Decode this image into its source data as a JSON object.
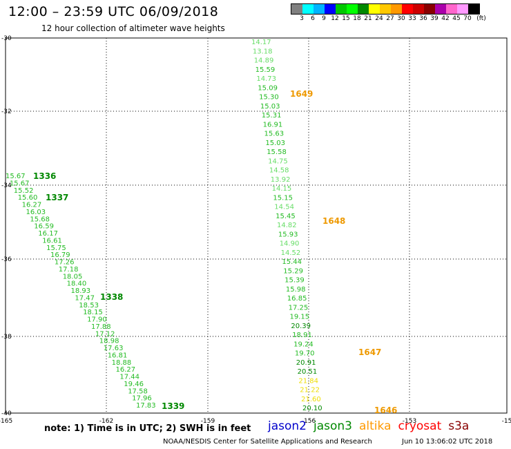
{
  "header": {
    "title": "12:00 – 23:59 UTC 06/09/2018",
    "subtitle": "12 hour collection of altimeter wave heights"
  },
  "colorbar": {
    "unit": "(ft)",
    "colors": [
      "#808080",
      "#00ffff",
      "#00b4ff",
      "#0000ff",
      "#00c800",
      "#00ff00",
      "#008800",
      "#ffff00",
      "#ffc800",
      "#ff9900",
      "#ff0000",
      "#cc0000",
      "#880000",
      "#aa00aa",
      "#ff66cc",
      "#ff99ff",
      "#000000"
    ],
    "labels": [
      "3",
      "6",
      "9",
      "12",
      "15",
      "18",
      "21",
      "24",
      "27",
      "30",
      "33",
      "36",
      "39",
      "42",
      "45",
      "70"
    ]
  },
  "axes": {
    "lon_ticks": [
      "-165",
      "-162",
      "-159",
      "-156",
      "-153",
      "-15"
    ],
    "lat_ticks": [
      "-30",
      "-32",
      "-34",
      "-36",
      "-38",
      "-40"
    ]
  },
  "tracks": [
    {
      "name": "jason3-east",
      "points": [
        [
          "14.17",
          "#66dd66"
        ],
        [
          "13.18",
          "#66dd66"
        ],
        [
          "14.89",
          "#66dd66"
        ],
        [
          "15.59",
          "#22bb22"
        ],
        [
          "14.73",
          "#66dd66"
        ],
        [
          "15.09",
          "#22bb22"
        ],
        [
          "15.30",
          "#22bb22"
        ],
        [
          "15.03",
          "#22bb22"
        ],
        [
          "15.31",
          "#22bb22"
        ],
        [
          "16.91",
          "#22bb22"
        ],
        [
          "15.63",
          "#22bb22"
        ],
        [
          "15.03",
          "#22bb22"
        ],
        [
          "15.58",
          "#22bb22"
        ],
        [
          "14.75",
          "#66dd66"
        ],
        [
          "14.58",
          "#66dd66"
        ],
        [
          "13.92",
          "#66dd66"
        ],
        [
          "14.15",
          "#66dd66"
        ],
        [
          "15.15",
          "#22bb22"
        ],
        [
          "14.54",
          "#66dd66"
        ],
        [
          "15.45",
          "#22bb22"
        ],
        [
          "14.82",
          "#66dd66"
        ],
        [
          "15.93",
          "#22bb22"
        ],
        [
          "14.90",
          "#66dd66"
        ],
        [
          "14.52",
          "#66dd66"
        ],
        [
          "15.44",
          "#22bb22"
        ],
        [
          "15.29",
          "#22bb22"
        ],
        [
          "15.39",
          "#22bb22"
        ],
        [
          "15.98",
          "#22bb22"
        ],
        [
          "16.85",
          "#22bb22"
        ],
        [
          "17.25",
          "#22bb22"
        ],
        [
          "19.15",
          "#22bb22"
        ],
        [
          "20.39",
          "#008800"
        ],
        [
          "18.91",
          "#22bb22"
        ],
        [
          "19.24",
          "#22bb22"
        ],
        [
          "19.70",
          "#22bb22"
        ],
        [
          "20.91",
          "#008800"
        ],
        [
          "20.51",
          "#008800"
        ],
        [
          "21.84",
          "#eedd00"
        ],
        [
          "21.22",
          "#eedd00"
        ],
        [
          "21.60",
          "#eedd00"
        ],
        [
          "20.10",
          "#008800"
        ]
      ]
    },
    {
      "name": "jason3-west",
      "points": [
        [
          "15.67",
          "#22bb22"
        ],
        [
          "15.67",
          "#22bb22"
        ],
        [
          "15.52",
          "#22bb22"
        ],
        [
          "15.60",
          "#22bb22"
        ],
        [
          "16.27",
          "#22bb22"
        ],
        [
          "16.03",
          "#22bb22"
        ],
        [
          "15.68",
          "#22bb22"
        ],
        [
          "16.59",
          "#22bb22"
        ],
        [
          "16.17",
          "#22bb22"
        ],
        [
          "16.61",
          "#22bb22"
        ],
        [
          "15.75",
          "#22bb22"
        ],
        [
          "16.79",
          "#22bb22"
        ],
        [
          "17.26",
          "#22bb22"
        ],
        [
          "17.18",
          "#22bb22"
        ],
        [
          "18.05",
          "#22bb22"
        ],
        [
          "18.40",
          "#22bb22"
        ],
        [
          "18.93",
          "#22bb22"
        ],
        [
          "17.47",
          "#22bb22"
        ],
        [
          "18.53",
          "#22bb22"
        ],
        [
          "18.15",
          "#22bb22"
        ],
        [
          "17.90",
          "#22bb22"
        ],
        [
          "17.88",
          "#22bb22"
        ],
        [
          "17.12",
          "#22bb22"
        ],
        [
          "18.98",
          "#22bb22"
        ],
        [
          "17.63",
          "#22bb22"
        ],
        [
          "16.81",
          "#22bb22"
        ],
        [
          "18.88",
          "#22bb22"
        ],
        [
          "16.27",
          "#22bb22"
        ],
        [
          "17.44",
          "#22bb22"
        ],
        [
          "19.46",
          "#22bb22"
        ],
        [
          "17.58",
          "#22bb22"
        ],
        [
          "17.96",
          "#22bb22"
        ],
        [
          "17.83",
          "#22bb22"
        ]
      ]
    }
  ],
  "time_labels": [
    {
      "text": "1649",
      "color": "#ee9900"
    },
    {
      "text": "1648",
      "color": "#ee9900"
    },
    {
      "text": "1647",
      "color": "#ee9900"
    },
    {
      "text": "1646",
      "color": "#ee9900"
    },
    {
      "text": "1336",
      "color": "#008800"
    },
    {
      "text": "1337",
      "color": "#008800"
    },
    {
      "text": "1338",
      "color": "#008800"
    },
    {
      "text": "1339",
      "color": "#008800"
    }
  ],
  "note": "note:  1) Time is in UTC;  2) SWH is in feet",
  "legend": [
    {
      "text": "jason2",
      "color": "#0000cc"
    },
    {
      "text": "jason3",
      "color": "#008800"
    },
    {
      "text": "altika",
      "color": "#ff9900"
    },
    {
      "text": "cryosat",
      "color": "#ff0000"
    },
    {
      "text": "s3a",
      "color": "#880000"
    }
  ],
  "footer": {
    "credit": "NOAA/NESDIS Center for Satellite Applications and Research",
    "date": "Jun 10 13:06:02 UTC 2018"
  }
}
